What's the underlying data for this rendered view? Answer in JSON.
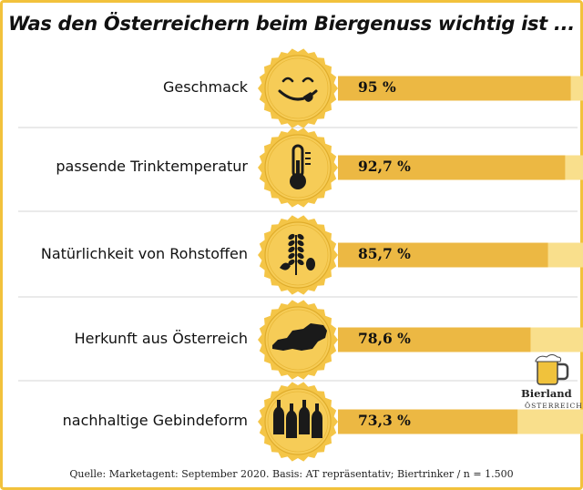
{
  "chart_data": {
    "type": "bar",
    "title": "Was den Österreichern beim Biergenuss wichtig ist ...",
    "categories": [
      "Geschmack",
      "passende Trinktemperatur",
      "Natürlichkeit von Rohstoffen",
      "Herkunft aus Österreich",
      "nachhaltige Gebindeform"
    ],
    "values": [
      95,
      92.7,
      85.7,
      78.6,
      73.3
    ],
    "value_labels": [
      "95 %",
      "92,7 %",
      "85,7 %",
      "78,6 %",
      "73,3 %"
    ],
    "icons": [
      "smiley-icon",
      "thermometer-icon",
      "wheat-hops-icon",
      "austria-map-icon",
      "bottles-icon"
    ],
    "ylim": [
      0,
      100
    ],
    "grid": false,
    "colors": {
      "bar": "#ecb843",
      "track": "#f9df8c",
      "badge": "#f4c547",
      "badge_inner": "#f6cc57",
      "frame": "#f2c23c",
      "separator": "#d4d4d4",
      "icon": "#1a1a1a"
    }
  },
  "source": "Quelle: Marketagent: September 2020. Basis: AT repräsentativ; Biertrinker / n = 1.500",
  "logo": {
    "word": "Bierland",
    "sub": "ÖSTERREICH"
  }
}
